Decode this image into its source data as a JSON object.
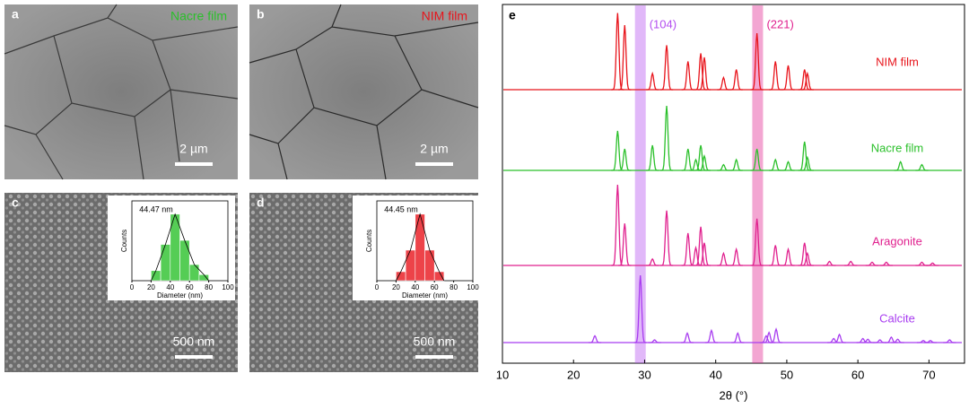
{
  "images": [
    {
      "label": "a",
      "caption": "Nacre film",
      "caption_color": "#2bc02b",
      "scale": "2 µm"
    },
    {
      "label": "b",
      "caption": "NIM film",
      "caption_color": "#e8141b",
      "scale": "2 µm"
    },
    {
      "label": "c",
      "scale": "500 nm"
    },
    {
      "label": "d",
      "scale": "500 nm"
    }
  ],
  "chart_data": [
    {
      "type": "histogram",
      "title": "44.47 nm",
      "xlabel": "Diameter (nm)",
      "ylabel": "Counts",
      "bins": [
        20,
        30,
        40,
        50,
        60,
        70,
        80
      ],
      "values": [
        5,
        18,
        33,
        20,
        8,
        3
      ],
      "color": "#2bc02b",
      "xlim": [
        0,
        100
      ],
      "xticks": [
        0,
        20,
        40,
        60,
        80,
        100
      ]
    },
    {
      "type": "histogram",
      "title": "44.45 nm",
      "xlabel": "Diameter (nm)",
      "ylabel": "Counts",
      "bins": [
        20,
        30,
        40,
        50,
        60,
        70
      ],
      "values": [
        5,
        17,
        37,
        17,
        5
      ],
      "color": "#e8141b",
      "xlim": [
        0,
        100
      ],
      "xticks": [
        0,
        20,
        40,
        60,
        80,
        100
      ]
    },
    {
      "type": "xrd",
      "label": "e",
      "xlabel": "2θ (°)",
      "xlim": [
        10,
        75
      ],
      "xticks": [
        10,
        20,
        30,
        40,
        50,
        60,
        70
      ],
      "annotations": [
        {
          "label": "(104)",
          "x": 29.4,
          "color": "#b44ef0"
        },
        {
          "label": "(221)",
          "x": 45.9,
          "color": "#e0208e"
        }
      ],
      "series": [
        {
          "name": "NIM film",
          "color": "#e8141b",
          "x": [
            26.2,
            27.2,
            31.1,
            33.1,
            36.1,
            37.9,
            38.4,
            41.1,
            42.9,
            45.8,
            48.4,
            50.2,
            52.5,
            52.9
          ],
          "values": [
            95,
            80,
            20,
            55,
            35,
            45,
            40,
            15,
            25,
            70,
            35,
            30,
            25,
            20
          ]
        },
        {
          "name": "Nacre film",
          "color": "#2bc02b",
          "x": [
            26.2,
            27.2,
            31.1,
            33.1,
            36.1,
            37.2,
            37.9,
            38.4,
            41.1,
            42.9,
            45.8,
            48.4,
            50.2,
            52.5,
            52.9,
            66.0,
            69.0
          ],
          "values": [
            55,
            30,
            35,
            90,
            30,
            15,
            35,
            20,
            8,
            15,
            30,
            15,
            12,
            40,
            18,
            12,
            8
          ]
        },
        {
          "name": "Aragonite",
          "color": "#e0208e",
          "x": [
            26.2,
            27.2,
            31.1,
            33.1,
            36.1,
            37.2,
            37.9,
            38.4,
            41.1,
            42.9,
            45.8,
            48.4,
            50.2,
            52.5,
            52.9,
            56.0,
            59.0,
            62.0,
            64.0,
            69.0,
            70.5
          ],
          "values": [
            100,
            52,
            8,
            68,
            40,
            22,
            48,
            28,
            15,
            20,
            58,
            25,
            20,
            28,
            15,
            5,
            5,
            4,
            4,
            4,
            3
          ]
        },
        {
          "name": "Calcite",
          "color": "#a83cf0",
          "x": [
            23.0,
            29.4,
            31.4,
            36.0,
            39.4,
            43.1,
            47.1,
            47.5,
            48.5,
            56.6,
            57.4,
            60.7,
            61.4,
            63.1,
            64.7,
            65.6,
            69.2,
            70.2,
            72.9
          ],
          "values": [
            10,
            100,
            4,
            14,
            18,
            14,
            10,
            15,
            20,
            6,
            12,
            6,
            5,
            4,
            8,
            5,
            3,
            3,
            4
          ]
        }
      ]
    }
  ]
}
